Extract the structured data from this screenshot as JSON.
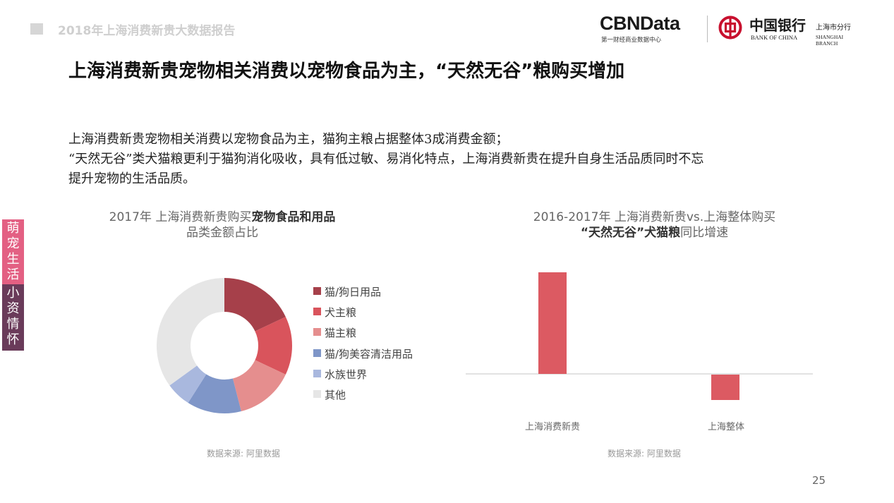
{
  "header": {
    "report_title": "2018年上海消费新贵大数据报告",
    "cbn_logo_text": "CBNData",
    "cbn_logo_subtitle": "第一财经商业数据中心",
    "boc_name_cn": "中国银行",
    "boc_name_en": "BANK OF CHINA",
    "boc_branch_cn": "上海市分行",
    "boc_branch_en": "SHANGHAI BRANCH"
  },
  "headline": "上海消费新贵宠物相关消费以宠物食品为主，“天然无谷”粮购买增加",
  "body_lines": [
    "上海消费新贵宠物相关消费以宠物食品为主，猫狗主粮占据整体3成消费金额；",
    "“天然无谷”类犬猫粮更利于猫狗消化吸收，具有低过敏、易消化特点，上海消费新贵在提升自身生活品质同时不忘",
    "提升宠物的生活品质。"
  ],
  "side_tabs": {
    "top": [
      "萌",
      "宠",
      "生",
      "活"
    ],
    "bottom": [
      "小",
      "资",
      "情",
      "怀"
    ]
  },
  "colors": {
    "tab_pink": "#e36083",
    "tab_purple": "#6a3b5a"
  },
  "chart_left": {
    "title_part1": "2017年 上海消费新贵购买",
    "title_bold": "宠物食品和用品",
    "title_line2": "品类金额占比",
    "source": "数据来源: 阿里数据"
  },
  "chart_right": {
    "title_line1": "2016-2017年 上海消费新贵vs.上海整体购买",
    "title_bold1": "“天然无谷”犬猫粮",
    "title_tail": "同比增速",
    "source": "数据来源: 阿里数据"
  },
  "chart_data": [
    {
      "type": "pie",
      "donut": true,
      "legend_position": "right",
      "categories": [
        "猫/狗日用品",
        "犬主粮",
        "猫主粮",
        "猫/狗美容清洁用品",
        "水族世界",
        "其他"
      ],
      "values": [
        18,
        14,
        14,
        13,
        6,
        35
      ],
      "colors": [
        "#a6404a",
        "#d9545c",
        "#e58e8e",
        "#7f96c8",
        "#a9b8de",
        "#e6e6e6"
      ]
    },
    {
      "type": "bar",
      "categories": [
        "上海消费新贵",
        "上海整体"
      ],
      "values": [
        100,
        -25
      ],
      "ylim": [
        -30,
        100
      ],
      "bar_color": "#dc5a62",
      "grid": false
    }
  ],
  "page_number": "25"
}
